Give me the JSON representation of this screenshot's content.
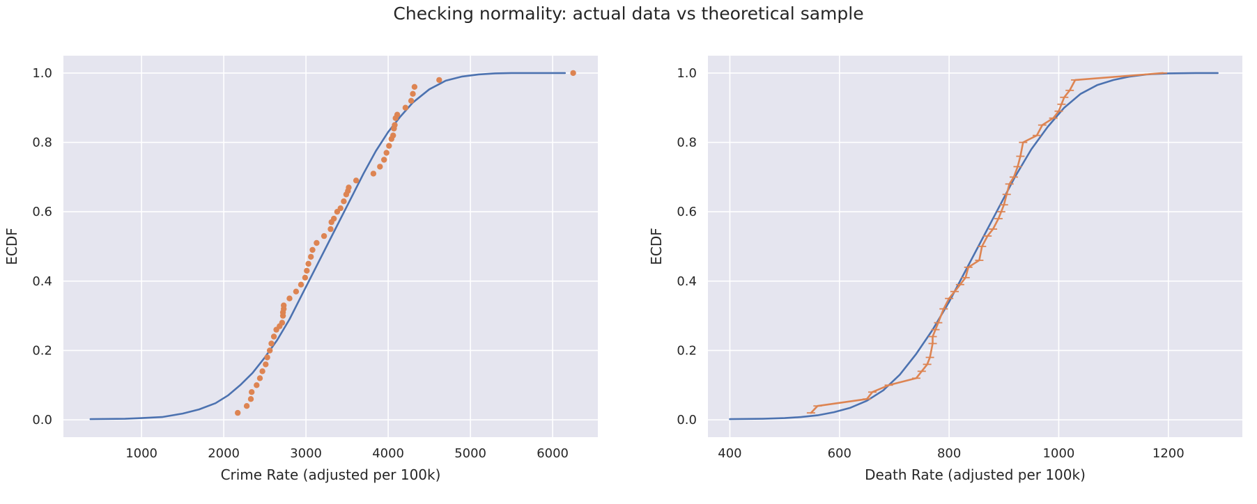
{
  "figure": {
    "suptitle": "Checking normality: actual data vs theoretical sample"
  },
  "colors": {
    "theoretical": "#4c72b0",
    "actual": "#dd8452",
    "background": "#e5e5ef",
    "grid": "#ffffff",
    "text": "#262626"
  },
  "chart_data": [
    {
      "type": "line",
      "xlabel": "Crime Rate (adjusted per 100k)",
      "ylabel": "ECDF",
      "xlim": [
        50,
        6550
      ],
      "ylim": [
        -0.05,
        1.05
      ],
      "xticks": [
        1000,
        2000,
        3000,
        4000,
        5000,
        6000
      ],
      "yticks": [
        0.0,
        0.2,
        0.4,
        0.6,
        0.8,
        1.0
      ],
      "grid": true,
      "series": [
        {
          "kind": "line",
          "color": "#4c72b0",
          "x": [
            380,
            800,
            1000,
            1250,
            1500,
            1700,
            1900,
            2050,
            2200,
            2350,
            2500,
            2650,
            2800,
            2950,
            3100,
            3250,
            3400,
            3550,
            3700,
            3850,
            4000,
            4150,
            4300,
            4500,
            4700,
            4900,
            5100,
            5300,
            5500,
            5800,
            6150
          ],
          "y": [
            0.002,
            0.003,
            0.005,
            0.008,
            0.018,
            0.03,
            0.048,
            0.07,
            0.1,
            0.135,
            0.18,
            0.23,
            0.29,
            0.36,
            0.43,
            0.5,
            0.57,
            0.64,
            0.71,
            0.775,
            0.83,
            0.875,
            0.915,
            0.953,
            0.978,
            0.99,
            0.996,
            0.999,
            1.0,
            1.0,
            1.0
          ]
        },
        {
          "kind": "scatter",
          "color": "#dd8452",
          "x": [
            2170,
            2280,
            2330,
            2340,
            2400,
            2440,
            2470,
            2510,
            2530,
            2560,
            2580,
            2610,
            2640,
            2680,
            2710,
            2720,
            2720,
            2730,
            2730,
            2800,
            2880,
            2940,
            2990,
            3010,
            3030,
            3060,
            3080,
            3130,
            3220,
            3300,
            3310,
            3340,
            3380,
            3420,
            3460,
            3490,
            3510,
            3520,
            3610,
            3820,
            3900,
            3950,
            3980,
            4010,
            4040,
            4060,
            4070,
            4080,
            4090,
            4110,
            4210,
            4280,
            4300,
            4320,
            4620,
            6250
          ],
          "y": [
            0.02,
            0.04,
            0.06,
            0.08,
            0.1,
            0.12,
            0.14,
            0.16,
            0.18,
            0.2,
            0.22,
            0.24,
            0.26,
            0.27,
            0.28,
            0.3,
            0.31,
            0.32,
            0.33,
            0.35,
            0.37,
            0.39,
            0.41,
            0.43,
            0.45,
            0.47,
            0.49,
            0.51,
            0.53,
            0.55,
            0.57,
            0.58,
            0.6,
            0.61,
            0.63,
            0.65,
            0.66,
            0.67,
            0.69,
            0.71,
            0.73,
            0.75,
            0.77,
            0.79,
            0.81,
            0.82,
            0.84,
            0.85,
            0.87,
            0.88,
            0.9,
            0.92,
            0.94,
            0.96,
            0.98,
            1.0
          ]
        }
      ]
    },
    {
      "type": "line",
      "xlabel": "Death Rate (adjusted per 100k)",
      "ylabel": "ECDF",
      "xlim": [
        360,
        1335
      ],
      "ylim": [
        -0.05,
        1.05
      ],
      "xticks": [
        400,
        600,
        800,
        1000,
        1200
      ],
      "yticks": [
        0.0,
        0.2,
        0.4,
        0.6,
        0.8,
        1.0
      ],
      "grid": true,
      "series": [
        {
          "kind": "line",
          "color": "#4c72b0",
          "x": [
            400,
            460,
            500,
            530,
            560,
            590,
            620,
            650,
            680,
            710,
            740,
            770,
            800,
            830,
            860,
            890,
            920,
            950,
            980,
            1010,
            1040,
            1070,
            1100,
            1130,
            1160,
            1200,
            1250,
            1290
          ],
          "y": [
            0.002,
            0.003,
            0.005,
            0.008,
            0.013,
            0.022,
            0.035,
            0.055,
            0.085,
            0.13,
            0.19,
            0.26,
            0.34,
            0.43,
            0.52,
            0.61,
            0.7,
            0.78,
            0.845,
            0.9,
            0.94,
            0.965,
            0.98,
            0.99,
            0.996,
            0.999,
            1.0,
            1.0
          ]
        },
        {
          "kind": "line-markers",
          "color": "#dd8452",
          "x": [
            548,
            560,
            650,
            660,
            690,
            740,
            750,
            760,
            765,
            770,
            770,
            775,
            780,
            790,
            800,
            810,
            820,
            830,
            835,
            855,
            860,
            870,
            880,
            890,
            895,
            900,
            905,
            910,
            918,
            925,
            930,
            935,
            960,
            970,
            990,
            1000,
            1005,
            1010,
            1020,
            1030,
            1190
          ],
          "y": [
            0.02,
            0.04,
            0.06,
            0.08,
            0.1,
            0.12,
            0.14,
            0.16,
            0.18,
            0.22,
            0.24,
            0.26,
            0.28,
            0.32,
            0.35,
            0.37,
            0.39,
            0.41,
            0.44,
            0.46,
            0.5,
            0.53,
            0.55,
            0.58,
            0.6,
            0.62,
            0.65,
            0.68,
            0.7,
            0.73,
            0.76,
            0.8,
            0.82,
            0.85,
            0.87,
            0.89,
            0.91,
            0.93,
            0.95,
            0.98,
            1.0
          ]
        }
      ]
    }
  ]
}
